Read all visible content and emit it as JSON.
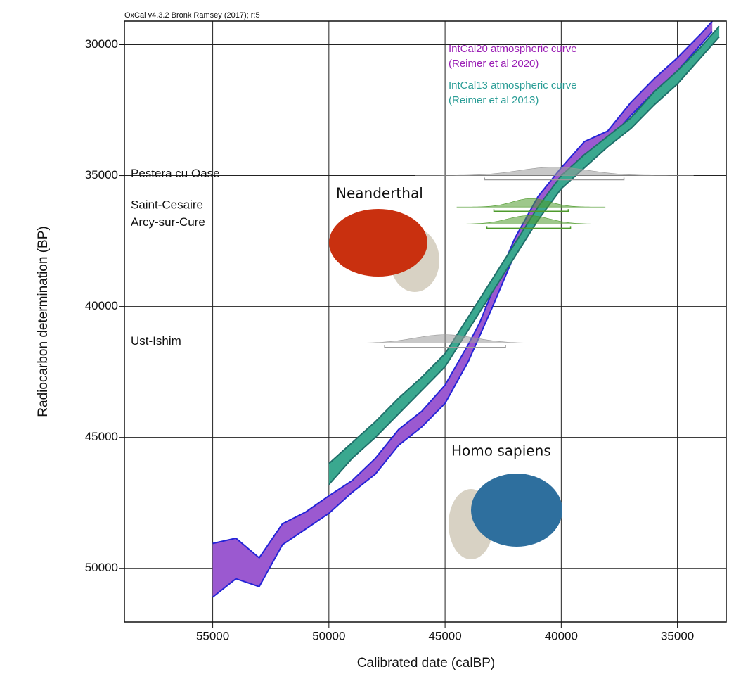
{
  "chart_data": {
    "type": "calibration",
    "header": "OxCal v4.3.2 Bronk Ramsey (2017); r:5",
    "x_label": "Calibrated date (calBP)",
    "y_label": "Radiocarbon determination (BP)",
    "xlim": [
      58800,
      32900
    ],
    "ylim": [
      52050,
      29100
    ],
    "xticks": [
      55000,
      50000,
      45000,
      40000,
      35000
    ],
    "yticks": [
      30000,
      35000,
      40000,
      45000,
      50000
    ],
    "grid": true,
    "series": [
      {
        "name": "IntCal20 atmospheric curve",
        "citation": "(Reimer et al 2020)",
        "color": "#9b59d0",
        "edge_color": "#2424d8",
        "text_color": "#9b1fb5",
        "x": [
          55000,
          54000,
          53000,
          52000,
          51000,
          50000,
          49000,
          48000,
          47000,
          46000,
          45000,
          44000,
          43500,
          43000,
          42000,
          41000,
          40000,
          39000,
          38000,
          37000,
          36000,
          35000,
          34000,
          33500
        ],
        "values_low": [
          49050,
          48850,
          49600,
          48300,
          47850,
          47230,
          46650,
          45800,
          44700,
          44000,
          43000,
          41450,
          40600,
          39500,
          37400,
          35800,
          34700,
          33700,
          33300,
          32200,
          31300,
          30500,
          29600,
          29100
        ],
        "values_high": [
          51100,
          50400,
          50700,
          49100,
          48500,
          47900,
          47100,
          46400,
          45300,
          44600,
          43700,
          42100,
          41100,
          40100,
          38000,
          36300,
          35200,
          34200,
          33700,
          32700,
          31800,
          31000,
          30000,
          29500
        ]
      },
      {
        "name": "IntCal13 atmospheric curve",
        "citation": "(Reimer et al 2013)",
        "color": "#3aa88f",
        "edge_color": "#1f6f6a",
        "text_color": "#2a9d96",
        "x": [
          50000,
          49000,
          48000,
          47000,
          46000,
          45000,
          44000,
          43000,
          42000,
          41000,
          40000,
          39000,
          38000,
          37000,
          36000,
          35000,
          34000,
          33200
        ],
        "values_low": [
          46000,
          45200,
          44400,
          43500,
          42700,
          41800,
          40400,
          39000,
          37600,
          36200,
          35000,
          34200,
          33500,
          32800,
          31800,
          31000,
          30100,
          29300
        ],
        "values_high": [
          46800,
          45800,
          45000,
          44100,
          43200,
          42300,
          40900,
          39500,
          38100,
          36700,
          35500,
          34700,
          33900,
          33200,
          32300,
          31500,
          30500,
          29700
        ]
      }
    ],
    "samples": [
      {
        "name": "Pestera cu Oase",
        "y": 35000,
        "cal_mean": 40300,
        "cal_sd": 1500,
        "color": "#9a9a9a"
      },
      {
        "name": "Saint-Cesaire",
        "y": 36200,
        "cal_mean": 41300,
        "cal_sd": 800,
        "color": "#4e9a2c"
      },
      {
        "name": "Arcy-sur-Cure",
        "y": 36850,
        "cal_mean": 41400,
        "cal_sd": 900,
        "color": "#4e9a2c"
      },
      {
        "name": "Ust-Ishim",
        "y": 41400,
        "cal_mean": 45000,
        "cal_sd": 1300,
        "color": "#9a9a9a"
      }
    ],
    "annotations": [
      "Neanderthal",
      "Homo sapiens"
    ]
  }
}
